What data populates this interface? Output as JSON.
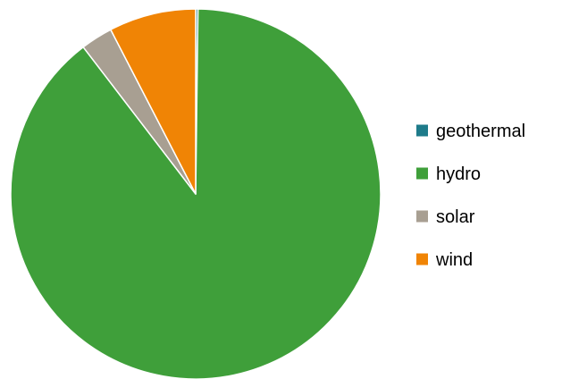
{
  "chart_data": {
    "type": "pie",
    "categories": [
      "geothermal",
      "hydro",
      "solar",
      "wind"
    ],
    "values": [
      0.2,
      89.4,
      2.8,
      7.6
    ],
    "colors": [
      "#1e7b8a",
      "#3f9f3a",
      "#a89f92",
      "#f08405"
    ],
    "title": "",
    "legend_position": "right",
    "start_angle": "top",
    "direction": "clockwise"
  }
}
